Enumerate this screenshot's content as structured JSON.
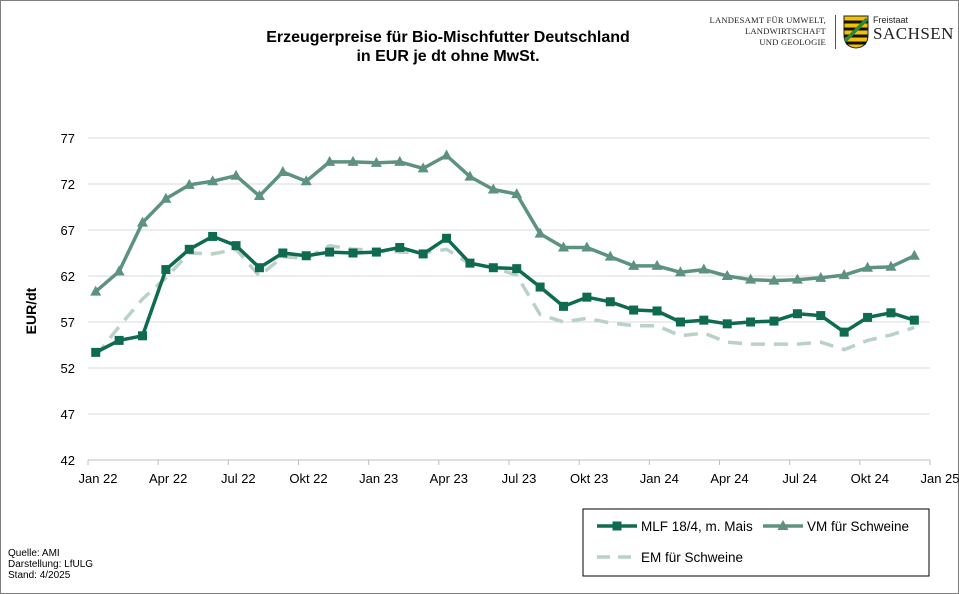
{
  "header": {
    "title_line1": "Erzeugerpreise für Bio-Mischfutter Deutschland",
    "title_line2": "in EUR je dt ohne MwSt.",
    "logo_lfulg": [
      "LANDESAMT FÜR UMWELT,",
      "LANDWIRTSCHAFT",
      "UND GEOLOGIE"
    ],
    "logo_freistaat": "Freistaat",
    "logo_sachsen": "SACHSEN"
  },
  "footer": {
    "source_lines": [
      "Quelle:  AMI",
      "Darstellung: LfULG",
      "Stand: 4/2025"
    ]
  },
  "chart_data": {
    "type": "line",
    "title": "Erzeugerpreise für Bio-Mischfutter Deutschland in EUR je dt ohne MwSt.",
    "xlabel": "",
    "ylabel": "EUR/dt",
    "ylim": [
      42,
      77
    ],
    "yticks": [
      42,
      47,
      52,
      57,
      62,
      67,
      72,
      77
    ],
    "xlim_months": [
      0,
      36
    ],
    "xticks": [
      {
        "m": 0,
        "label": "Jan 22"
      },
      {
        "m": 3,
        "label": "Apr 22"
      },
      {
        "m": 6,
        "label": "Jul 22"
      },
      {
        "m": 9,
        "label": "Okt 22"
      },
      {
        "m": 12,
        "label": "Jan 23"
      },
      {
        "m": 15,
        "label": "Apr 23"
      },
      {
        "m": 18,
        "label": "Jul 23"
      },
      {
        "m": 21,
        "label": "Okt 23"
      },
      {
        "m": 24,
        "label": "Jan 24"
      },
      {
        "m": 27,
        "label": "Apr 24"
      },
      {
        "m": 30,
        "label": "Jul 24"
      },
      {
        "m": 33,
        "label": "Okt 24"
      },
      {
        "m": 36,
        "label": "Jan 25"
      }
    ],
    "x": [
      "Jan 22",
      "Feb 22",
      "Mär 22",
      "Apr 22",
      "Mai 22",
      "Jun 22",
      "Jul 22",
      "Aug 22",
      "Sep 22",
      "Okt 22",
      "Nov 22",
      "Dez 22",
      "Jan 23",
      "Feb 23",
      "Mär 23",
      "Apr 23",
      "Mai 23",
      "Jun 23",
      "Jul 23",
      "Aug 23",
      "Sep 23",
      "Okt 23",
      "Nov 23",
      "Dez 23",
      "Jan 24",
      "Feb 24",
      "Mär 24",
      "Apr 24",
      "Mai 24",
      "Jun 24",
      "Jul 24",
      "Aug 24",
      "Sep 24",
      "Okt 24",
      "Nov 24",
      "Dez 24"
    ],
    "grid": true,
    "legend_position": "bottom-right",
    "series": [
      {
        "name": "MLF 18/4, m. Mais",
        "color": "#0e6b4f",
        "marker": "square",
        "dash": "solid",
        "values": [
          53.7,
          55.0,
          55.5,
          62.7,
          64.9,
          66.3,
          65.3,
          62.9,
          64.5,
          64.2,
          64.6,
          64.5,
          64.6,
          65.1,
          64.4,
          66.1,
          63.4,
          62.9,
          62.8,
          60.8,
          58.7,
          59.7,
          59.2,
          58.3,
          58.2,
          57.0,
          57.2,
          56.8,
          57.0,
          57.1,
          57.9,
          57.7,
          55.9,
          57.5,
          58.0,
          57.2
        ]
      },
      {
        "name": "VM für Schweine",
        "color": "#5e9280",
        "marker": "triangle",
        "dash": "solid",
        "values": [
          60.3,
          62.5,
          67.8,
          70.4,
          71.9,
          72.3,
          72.9,
          70.7,
          73.3,
          72.3,
          74.4,
          74.4,
          74.3,
          74.4,
          73.7,
          75.1,
          72.8,
          71.4,
          70.9,
          66.6,
          65.1,
          65.1,
          64.1,
          63.1,
          63.1,
          62.4,
          62.7,
          62.0,
          61.6,
          61.5,
          61.6,
          61.8,
          62.1,
          62.9,
          63.0,
          64.2
        ]
      },
      {
        "name": "EM für Schweine",
        "color": "#b9d1c6",
        "marker": "none",
        "dash": "dashed",
        "values": [
          53.3,
          56.5,
          59.5,
          61.8,
          64.5,
          64.4,
          64.9,
          62.0,
          64.1,
          63.9,
          65.3,
          64.9,
          64.8,
          64.6,
          64.5,
          64.9,
          63.3,
          62.9,
          62.1,
          57.8,
          57.0,
          57.4,
          56.9,
          56.6,
          56.6,
          55.5,
          55.8,
          54.8,
          54.6,
          54.6,
          54.6,
          54.8,
          54.0,
          55.0,
          55.6,
          56.4
        ]
      }
    ]
  }
}
